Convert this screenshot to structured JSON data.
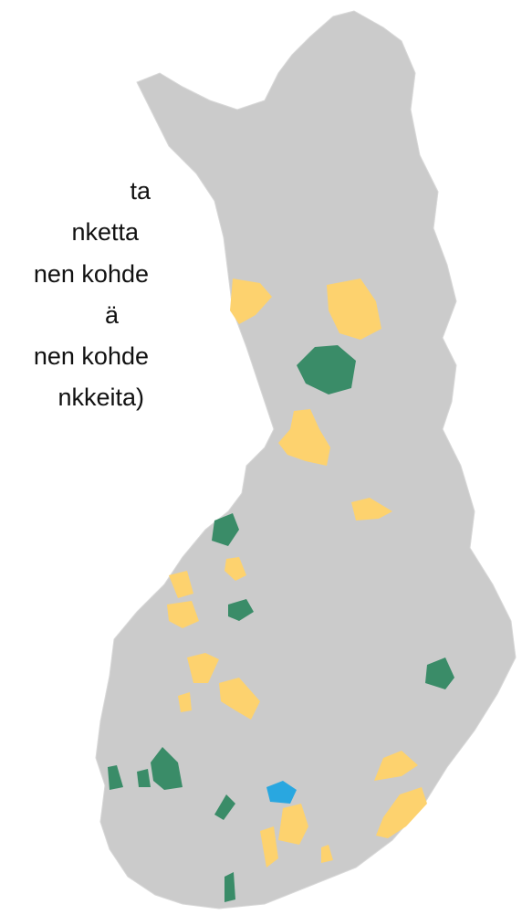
{
  "legend": {
    "lines": [
      "ta",
      "nketta",
      "nen kohde",
      "ä",
      "nen kohde",
      "nkkeita)"
    ]
  }
}
